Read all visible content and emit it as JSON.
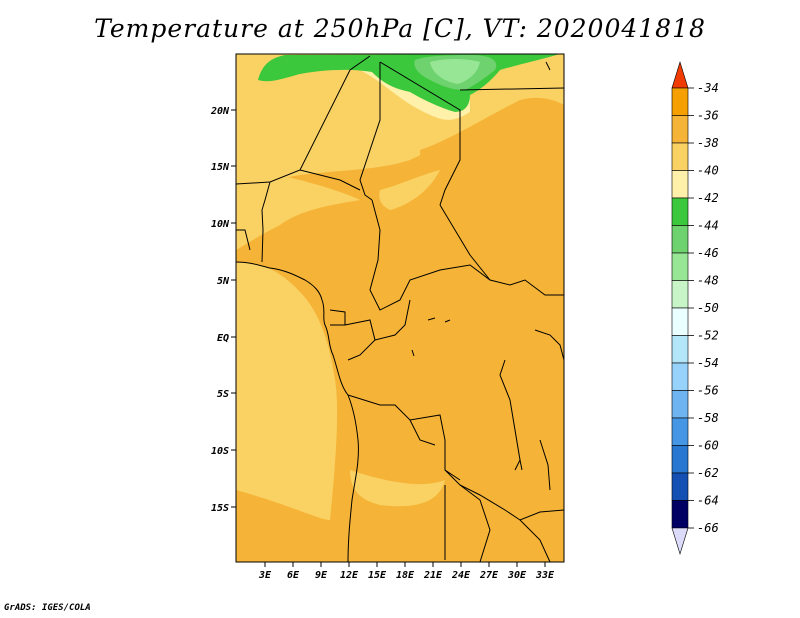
{
  "title": "Temperature at 250hPa [C], VT: 2020041818",
  "credit": "GrADS: IGES/COLA",
  "map": {
    "lat_labels": [
      "20N",
      "15N",
      "10N",
      "5N",
      "EQ",
      "5S",
      "10S",
      "15S"
    ],
    "lon_labels": [
      "3E",
      "6E",
      "9E",
      "12E",
      "15E",
      "18E",
      "21E",
      "24E",
      "27E",
      "30E",
      "33E"
    ]
  },
  "legend": {
    "top_triangle_color": "#f03c00",
    "bottom_triangle_color": "#dcdcfa",
    "bins": [
      {
        "label": "-34",
        "color": "#f06e00"
      },
      {
        "label": "-36",
        "color": "#f5a000"
      },
      {
        "label": "-38",
        "color": "#f5b437"
      },
      {
        "label": "-40",
        "color": "#fad264"
      },
      {
        "label": "-42",
        "color": "#fff0aa"
      },
      {
        "label": "-44",
        "color": "#3cc83c"
      },
      {
        "label": "-46",
        "color": "#6ed26e"
      },
      {
        "label": "-48",
        "color": "#96e696"
      },
      {
        "label": "-50",
        "color": "#c8f5c8"
      },
      {
        "label": "-52",
        "color": "#eaffff"
      },
      {
        "label": "-54",
        "color": "#b4e6fa"
      },
      {
        "label": "-56",
        "color": "#96d2fa"
      },
      {
        "label": "-58",
        "color": "#6eb4f0"
      },
      {
        "label": "-60",
        "color": "#4696e6"
      },
      {
        "label": "-62",
        "color": "#2878d2"
      },
      {
        "label": "-64",
        "color": "#1450b4"
      },
      {
        "label": "-66",
        "color": "#000064"
      }
    ]
  }
}
